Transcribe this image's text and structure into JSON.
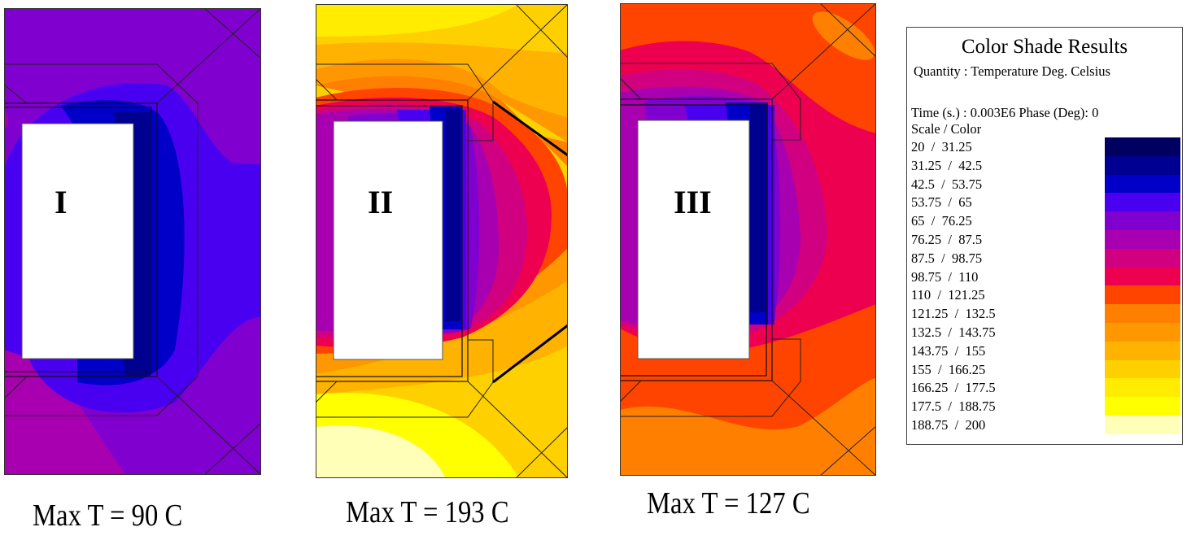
{
  "panels": [
    {
      "label": "I",
      "caption": "Max T = 90 C"
    },
    {
      "label": "II",
      "caption": "Max T = 193 C"
    },
    {
      "label": "III",
      "caption": "Max T = 127 C"
    }
  ],
  "legend": {
    "title": "Color Shade Results",
    "quantity": "Quantity : Temperature Deg. Celsius",
    "time": "Time (s.) : 0.003E6 Phase (Deg): 0",
    "scale_header": "Scale / Color",
    "rows": [
      {
        "range": "20  /  31.25",
        "color": "#000060"
      },
      {
        "range": "31.25  /  42.5",
        "color": "#000090"
      },
      {
        "range": "42.5  /  53.75",
        "color": "#0000C8"
      },
      {
        "range": "53.75  /  65",
        "color": "#4A00F0"
      },
      {
        "range": "65  /  76.25",
        "color": "#8000D0"
      },
      {
        "range": "76.25  /  87.5",
        "color": "#A800B0"
      },
      {
        "range": "87.5  /  98.75",
        "color": "#D00080"
      },
      {
        "range": "98.75  /  110",
        "color": "#EE0050"
      },
      {
        "range": "110  /  121.25",
        "color": "#FF4400"
      },
      {
        "range": "121.25  /  132.5",
        "color": "#FF7F00"
      },
      {
        "range": "132.5  /  143.75",
        "color": "#FF9800"
      },
      {
        "range": "143.75  /  155",
        "color": "#FFB300"
      },
      {
        "range": "155  /  166.25",
        "color": "#FFD000"
      },
      {
        "range": "166.25  /  177.5",
        "color": "#FFEC00"
      },
      {
        "range": "177.5  /  188.75",
        "color": "#FFFF00"
      },
      {
        "range": "188.75  /  200",
        "color": "#FFFFB8"
      }
    ]
  }
}
